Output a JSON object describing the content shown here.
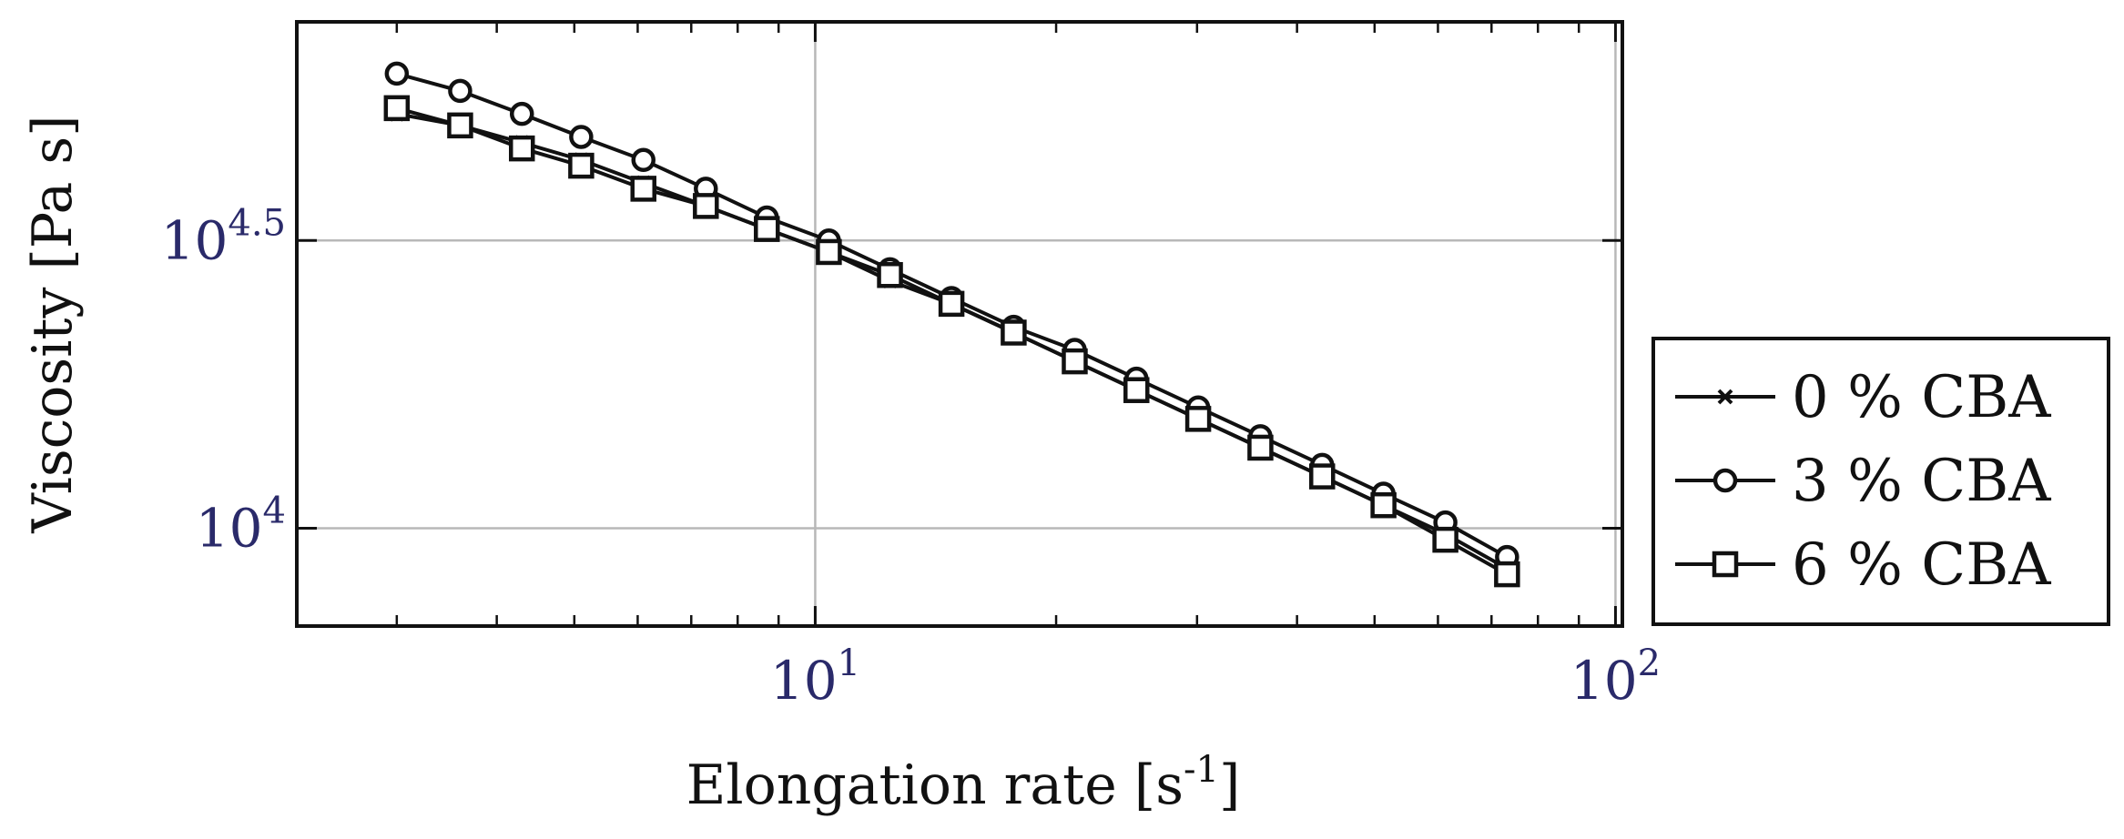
{
  "chart_data": {
    "type": "line",
    "title": "",
    "xlabel": "Elongation rate [s",
    "xlabel_sup": "-1",
    "xlabel_end": "]",
    "ylabel": "Viscosity [Pa s]",
    "x_scale": "log",
    "y_scale": "log",
    "xlim": [
      2.25,
      102
    ],
    "ylim_log10": [
      3.83,
      4.88
    ],
    "grid": true,
    "legend_position": "outside right",
    "x_ticks": [
      {
        "value": 10,
        "base": "10",
        "exp": "1"
      },
      {
        "value": 100,
        "base": "10",
        "exp": "2"
      }
    ],
    "y_ticks": [
      {
        "log10": 4.0,
        "base": "10",
        "exp": "4"
      },
      {
        "log10": 4.5,
        "base": "10",
        "exp": "4.5"
      }
    ],
    "x": [
      3.0,
      3.6,
      4.3,
      5.1,
      6.1,
      7.3,
      8.7,
      10.4,
      12.4,
      14.8,
      17.7,
      21.1,
      25.2,
      30.1,
      36.0,
      43.0,
      51.3,
      61.3,
      73.2
    ],
    "series": [
      {
        "name": "0 % CBA",
        "marker": "star",
        "log10_values": [
          4.72,
          4.7,
          4.67,
          4.64,
          4.6,
          4.56,
          4.52,
          4.48,
          4.43,
          4.39,
          4.34,
          4.29,
          4.24,
          4.19,
          4.14,
          4.09,
          4.04,
          3.99,
          3.93
        ]
      },
      {
        "name": "3 % CBA",
        "marker": "circle",
        "log10_values": [
          4.79,
          4.76,
          4.72,
          4.68,
          4.64,
          4.59,
          4.54,
          4.5,
          4.45,
          4.4,
          4.35,
          4.31,
          4.26,
          4.21,
          4.16,
          4.11,
          4.06,
          4.01,
          3.95
        ]
      },
      {
        "name": "6 % CBA",
        "marker": "square",
        "log10_values": [
          4.73,
          4.7,
          4.66,
          4.63,
          4.59,
          4.56,
          4.52,
          4.48,
          4.44,
          4.39,
          4.34,
          4.29,
          4.24,
          4.19,
          4.14,
          4.09,
          4.04,
          3.98,
          3.92
        ]
      }
    ],
    "colors": {
      "line": "#111111",
      "grid": "#b8b8b8",
      "tick_label": "#2a2a6a"
    }
  }
}
